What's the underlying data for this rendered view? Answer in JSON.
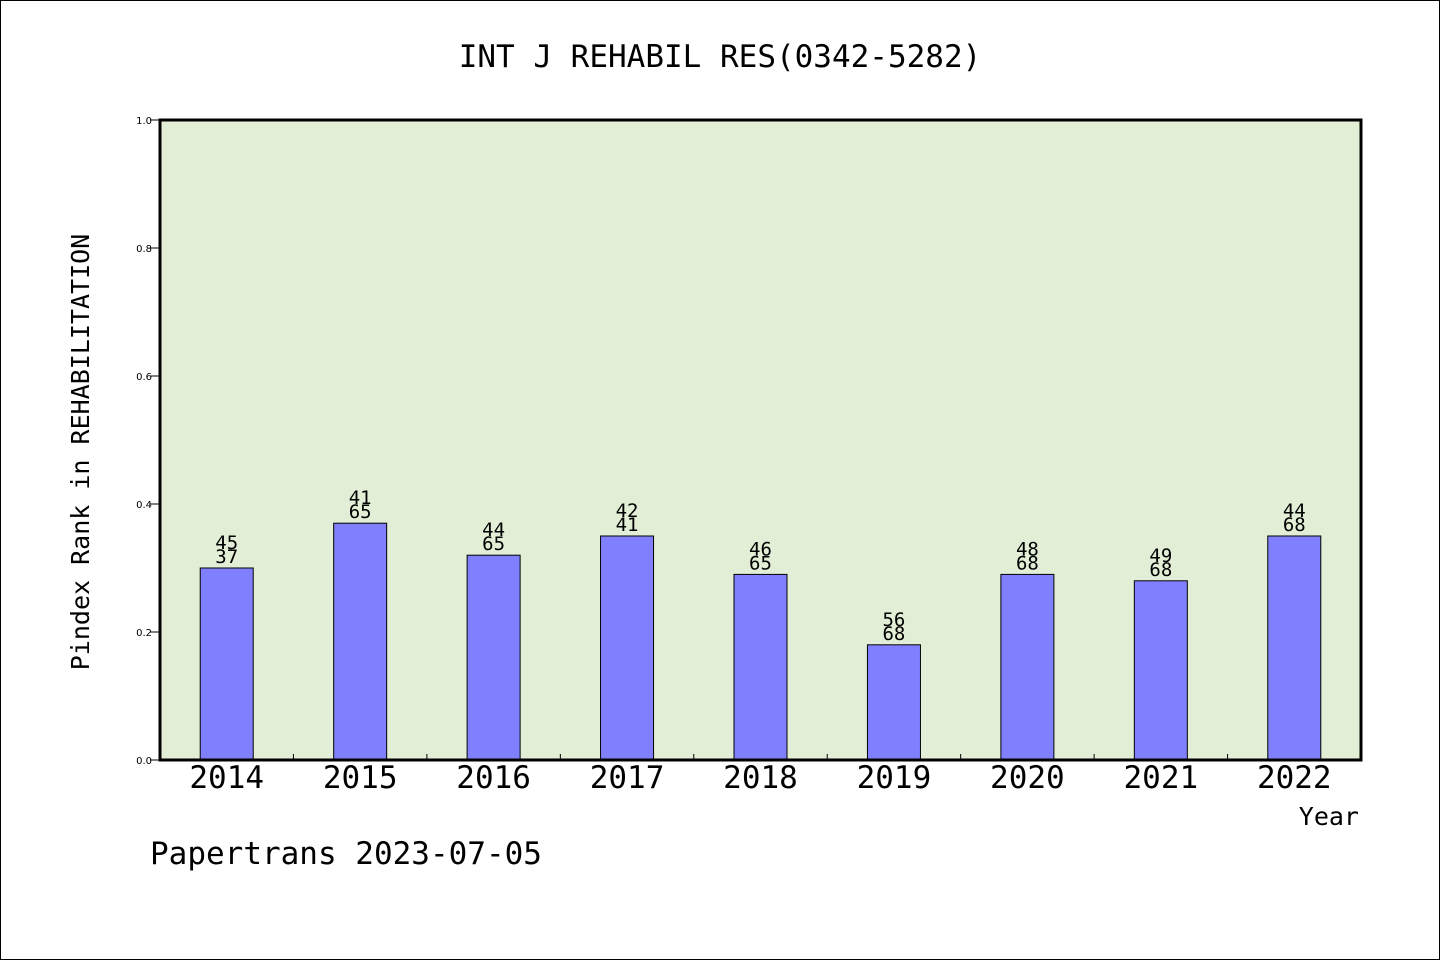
{
  "chart_data": {
    "type": "bar",
    "title": "INT J REHABIL RES(0342-5282)",
    "xlabel": "Year",
    "ylabel": "Pindex Rank in REHABILITATION",
    "categories": [
      "2014",
      "2015",
      "2016",
      "2017",
      "2018",
      "2019",
      "2020",
      "2021",
      "2022"
    ],
    "values": [
      0.3,
      0.37,
      0.32,
      0.35,
      0.29,
      0.18,
      0.29,
      0.28,
      0.35
    ],
    "labels_top": [
      "45",
      "41",
      "44",
      "42",
      "46",
      "56",
      "48",
      "49",
      "44"
    ],
    "labels_bottom": [
      "37",
      "65",
      "65",
      "41",
      "65",
      "68",
      "68",
      "68",
      "68"
    ],
    "ylim": [
      0.0,
      1.0
    ],
    "yticks": [
      "0.0",
      "0.2",
      "0.4",
      "0.6",
      "0.8",
      "1.0"
    ],
    "grid": false,
    "bar_color": "#8080ff",
    "plot_background": "#e2efd6"
  },
  "footer": "Papertrans 2023-07-05"
}
